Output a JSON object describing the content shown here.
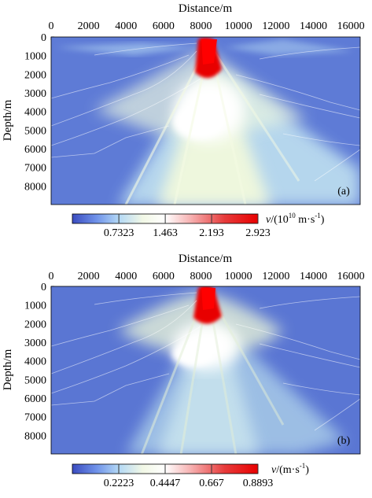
{
  "chart_data": [
    {
      "type": "heatmap",
      "panel_label": "(a)",
      "xlabel": "Distance/m",
      "ylabel": "Depth/m",
      "xlim": [
        0,
        16500
      ],
      "ylim": [
        0,
        9000
      ],
      "y_inverted": true,
      "x_axis_position": "top",
      "x_ticks": [
        "0",
        "2000",
        "4000",
        "6000",
        "8000",
        "10000",
        "12000",
        "14000",
        "16000"
      ],
      "x_tick_values": [
        0,
        2000,
        4000,
        6000,
        8000,
        10000,
        12000,
        14000,
        16000
      ],
      "y_ticks": [
        "0",
        "1000",
        "2000",
        "3000",
        "4000",
        "5000",
        "6000",
        "7000",
        "8000"
      ],
      "y_tick_values": [
        0,
        1000,
        2000,
        3000,
        4000,
        5000,
        6000,
        7000,
        8000
      ],
      "colorbar": {
        "min": 0,
        "max": 2.923,
        "ticks": [
          "0.7323",
          "1.463",
          "2.193",
          "2.923"
        ],
        "tick_values": [
          0.7323,
          1.463,
          2.193,
          2.923
        ],
        "label_prefix": "v/(10",
        "label_exp": "10",
        "label_suffix": " m·s",
        "label_sup": "-1",
        "label_close": ")"
      },
      "peak": {
        "x": 8200,
        "depth": 1000
      },
      "colors": [
        "#3b4cc0",
        "#6f92e9",
        "#b3d8f5",
        "#f2f8e6",
        "#ffffff",
        "#f6b0b0",
        "#e73b3b",
        "#e80000"
      ]
    },
    {
      "type": "heatmap",
      "panel_label": "(b)",
      "xlabel": "Distance/m",
      "ylabel": "Depth/m",
      "xlim": [
        0,
        16500
      ],
      "ylim": [
        0,
        9000
      ],
      "y_inverted": true,
      "x_axis_position": "top",
      "x_ticks": [
        "0",
        "2000",
        "4000",
        "6000",
        "8000",
        "10000",
        "12000",
        "14000",
        "16000"
      ],
      "x_tick_values": [
        0,
        2000,
        4000,
        6000,
        8000,
        10000,
        12000,
        14000,
        16000
      ],
      "y_ticks": [
        "0",
        "1000",
        "2000",
        "3000",
        "4000",
        "5000",
        "6000",
        "7000",
        "8000"
      ],
      "y_tick_values": [
        0,
        1000,
        2000,
        3000,
        4000,
        5000,
        6000,
        7000,
        8000
      ],
      "colorbar": {
        "min": 0,
        "max": 0.8893,
        "ticks": [
          "0.2223",
          "0.4447",
          "0.667",
          "0.8893"
        ],
        "tick_values": [
          0.2223,
          0.4447,
          0.667,
          0.8893
        ],
        "label_prefix": "v/(m·s",
        "label_sup": "-1",
        "label_close": ")"
      },
      "peak": {
        "x": 8200,
        "depth": 800
      },
      "colors": [
        "#3b4cc0",
        "#6f92e9",
        "#b3d8f5",
        "#f2f8e6",
        "#ffffff",
        "#f6b0b0",
        "#e73b3b",
        "#e80000"
      ]
    }
  ]
}
